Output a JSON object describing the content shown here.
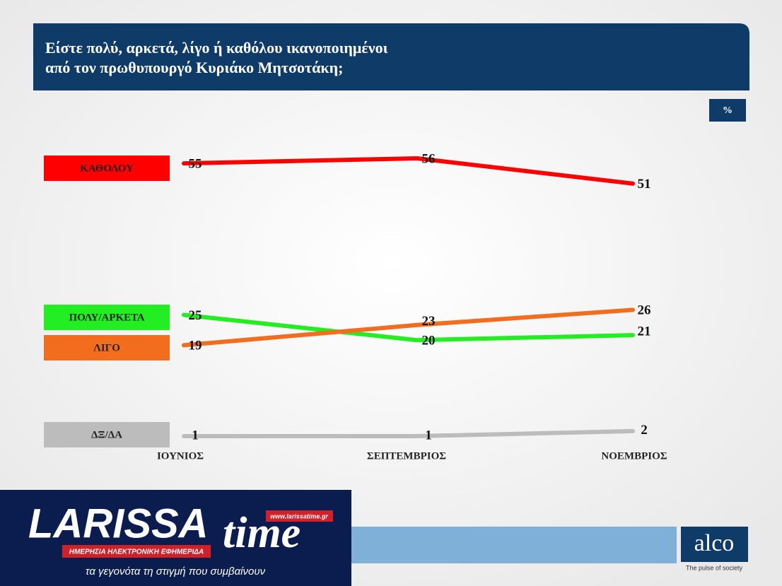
{
  "chart_data": {
    "type": "line",
    "title": "Είστε πολύ, αρκετά, λίγο ή καθόλου ικανοποιημένοι",
    "subtitle": "από τον πρωθυπουργό Κυριάκο Μητσοτάκη;",
    "unit": "%",
    "categories": [
      "ΙΟΥΝΙΟΣ",
      "ΣΕΠΤΕΜΒΡΙΟΣ",
      "ΝΟΕΜΒΡΙΟΣ"
    ],
    "series": [
      {
        "name": "ΚΑΘΟΛΟΥ",
        "color": "#ff0000",
        "values": [
          55,
          56,
          51
        ]
      },
      {
        "name": "ΠΟΛΥ/ΑΡΚΕΤΑ",
        "color": "#22ee22",
        "values": [
          25,
          20,
          21
        ]
      },
      {
        "name": "ΛΙΓΟ",
        "color": "#f26e1e",
        "values": [
          19,
          23,
          26
        ]
      },
      {
        "name": "ΔΞ/ΔΑ",
        "color": "#bcbcbc",
        "values": [
          1,
          1,
          2
        ]
      }
    ]
  },
  "branding": {
    "alco": "alco",
    "alco_tagline": "The pulse of society",
    "larissa": "LARISSA",
    "time": "time",
    "url": "www.larissatime.gr",
    "banner": "ΗΜΕΡΗΣΙΑ ΗΛΕΚΤΡΟΝΙΚΗ ΕΦΗΜΕΡΙΔΑ",
    "slogan": "τα γεγονότα τη στιγμή που συμβαίνουν"
  }
}
